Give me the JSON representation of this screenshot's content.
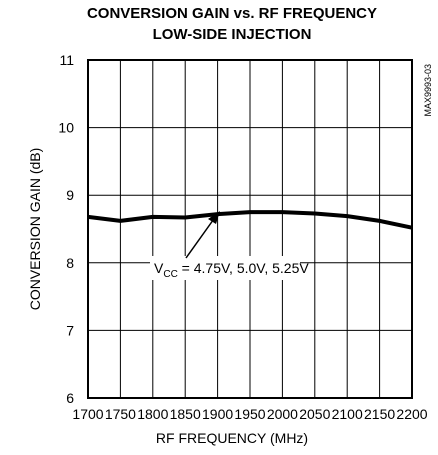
{
  "chart_data": {
    "type": "line",
    "title": "CONVERSION GAIN vs. RF FREQUENCY",
    "subtitle": "LOW-SIDE INJECTION",
    "x_label": "RF FREQUENCY (MHz)",
    "y_label": "CONVERSION GAIN (dB)",
    "side_note": "MAX9993-03",
    "annotation": [
      "V",
      "CC",
      " = 4.75V, 5.0V, 5.25V"
    ],
    "x": [
      1700,
      1750,
      1800,
      1850,
      1900,
      1950,
      2000,
      2050,
      2100,
      2150,
      2200
    ],
    "values": [
      8.68,
      8.62,
      8.68,
      8.67,
      8.72,
      8.75,
      8.75,
      8.73,
      8.69,
      8.62,
      8.52
    ],
    "color": "#000000",
    "xlim": [
      1700,
      2200
    ],
    "xticks": [
      1700,
      1750,
      1800,
      1850,
      1900,
      1950,
      2000,
      2050,
      2100,
      2150,
      2200
    ],
    "ylim": [
      6,
      11
    ],
    "yticks": [
      6,
      7,
      8,
      9,
      10,
      11
    ],
    "grid": true
  }
}
